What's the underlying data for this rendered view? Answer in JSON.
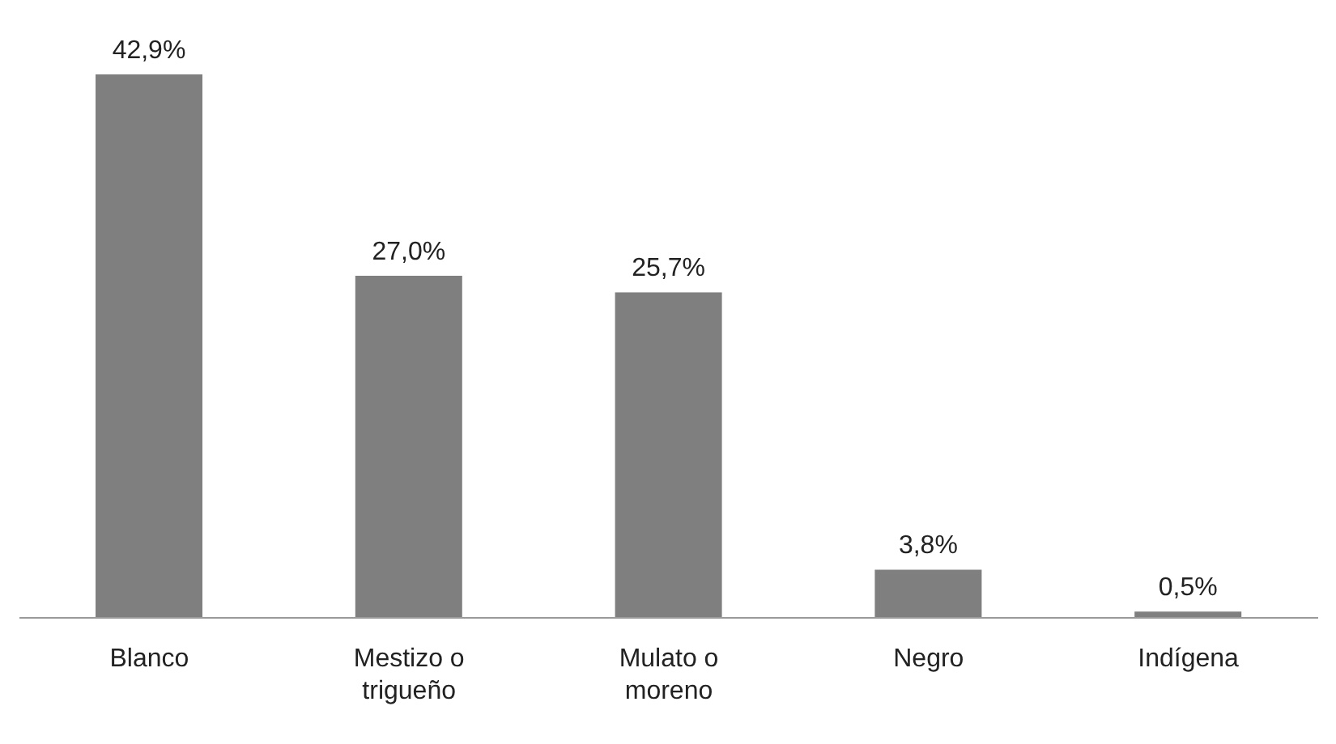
{
  "chart_data": {
    "type": "bar",
    "categories": [
      "Blanco",
      "Mestizo o trigueño",
      "Mulato o moreno",
      "Negro",
      "Indígena"
    ],
    "values": [
      42.9,
      27.0,
      25.7,
      3.8,
      0.5
    ],
    "value_labels": [
      "42,9%",
      "27,0%",
      "25,7%",
      "3,8%",
      "0,5%"
    ],
    "color": "#7f7f7f",
    "grid": false,
    "legend": false
  }
}
